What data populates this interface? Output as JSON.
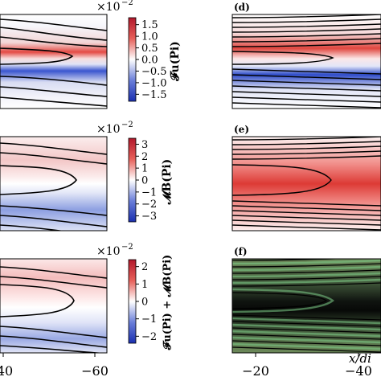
{
  "panels_left": [
    {
      "multiplier_text": "×10",
      "multiplier_exp": "−2",
      "colorbar_label": "𝓕u(Pi)",
      "colorbar_ticks": [
        "1.5",
        "1.0",
        "0.5",
        "0.0",
        "−0.5",
        "−1.0",
        "−1.5"
      ],
      "colorbar_values": [
        1.5,
        1.0,
        0.5,
        0.0,
        -0.5,
        -1.0,
        -1.5
      ],
      "colorbar_range": [
        -1.8,
        1.8
      ]
    },
    {
      "multiplier_text": "×10",
      "multiplier_exp": "−2",
      "colorbar_label": "𝓜B(Pi)",
      "colorbar_ticks": [
        "3",
        "2",
        "1",
        "0",
        "−1",
        "−2",
        "−3"
      ],
      "colorbar_values": [
        3,
        2,
        1,
        0,
        -1,
        -2,
        -3
      ],
      "colorbar_range": [
        -3.5,
        3.5
      ]
    },
    {
      "multiplier_text": "×10",
      "multiplier_exp": "−2",
      "colorbar_label": "𝓕u(Pi) + 𝓜B(Pi)",
      "colorbar_ticks": [
        "2",
        "1",
        "0",
        "−1",
        "−2"
      ],
      "colorbar_values": [
        2,
        1,
        0,
        -1,
        -2
      ],
      "colorbar_range": [
        -2.4,
        2.4
      ]
    }
  ],
  "panels_right": [
    {
      "label": "(d)"
    },
    {
      "label": "(e)"
    },
    {
      "label": "(f)"
    }
  ],
  "x_ticks_left": [
    "40",
    "−60"
  ],
  "x_ticks_right": [
    "−20",
    "−40"
  ],
  "x_axis_label": "x/di",
  "colors": {
    "positive": "#d7191c",
    "negative": "#1f3fbf",
    "neutral": "#ffffff",
    "contour": "#000000",
    "contour_f": "#7fd08a"
  },
  "chart_data": {
    "type": "heatmap",
    "panels": [
      "(d)",
      "(e)",
      "(f)"
    ],
    "xlabel": "x/di",
    "x_ticks": [
      -20,
      -40
    ]
  }
}
